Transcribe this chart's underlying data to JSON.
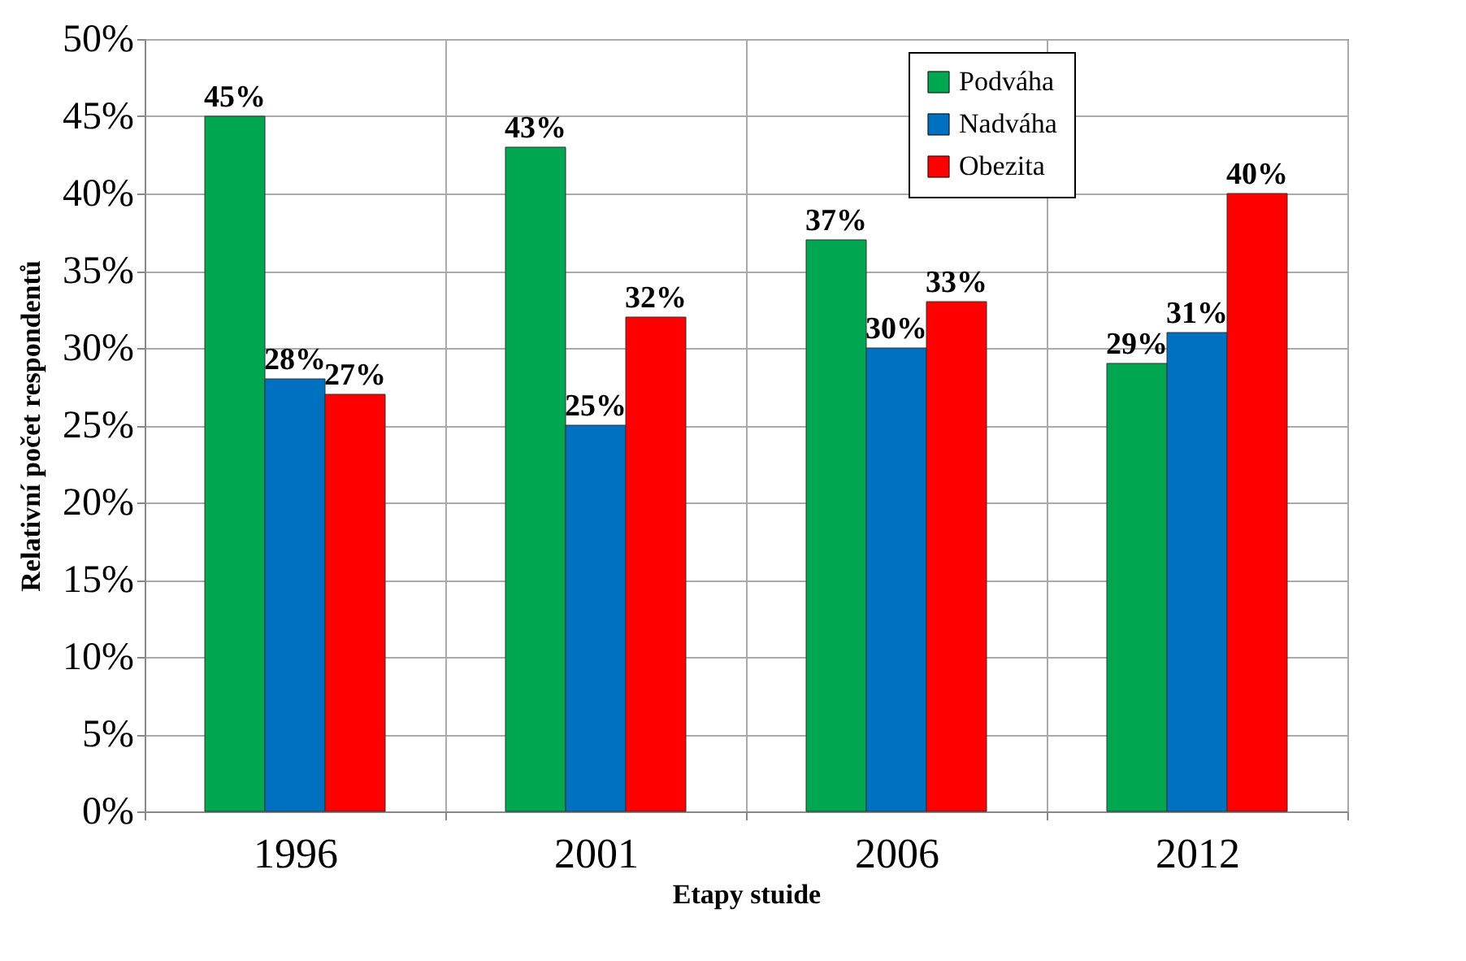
{
  "chart_data": {
    "type": "bar",
    "xlabel": "Etapy stuide",
    "ylabel": "Relativní počet respondentů",
    "categories": [
      "1996",
      "2001",
      "2006",
      "2012"
    ],
    "series": [
      {
        "name": "Podváha",
        "color": "#00a650",
        "values": [
          45,
          43,
          37,
          29
        ],
        "value_labels": [
          "45%",
          "43%",
          "37%",
          "29%"
        ]
      },
      {
        "name": "Nadváha",
        "color": "#0070c0",
        "values": [
          28,
          25,
          30,
          31
        ],
        "value_labels": [
          "28%",
          "25%",
          "30%",
          "31%"
        ]
      },
      {
        "name": "Obezita",
        "color": "#ff0000",
        "values": [
          27,
          32,
          33,
          40
        ],
        "value_labels": [
          "27%",
          "32%",
          "33%",
          "40%"
        ]
      }
    ],
    "ylim": [
      0,
      50
    ],
    "yticks": [
      {
        "value": 0,
        "label": "0%"
      },
      {
        "value": 5,
        "label": "5%"
      },
      {
        "value": 10,
        "label": "10%"
      },
      {
        "value": 15,
        "label": "15%"
      },
      {
        "value": 20,
        "label": "20%"
      },
      {
        "value": 25,
        "label": "25%"
      },
      {
        "value": 30,
        "label": "30%"
      },
      {
        "value": 35,
        "label": "35%"
      },
      {
        "value": 40,
        "label": "40%"
      },
      {
        "value": 45,
        "label": "45%"
      },
      {
        "value": 50,
        "label": "50%"
      }
    ],
    "grid": true,
    "legend": "top right"
  }
}
